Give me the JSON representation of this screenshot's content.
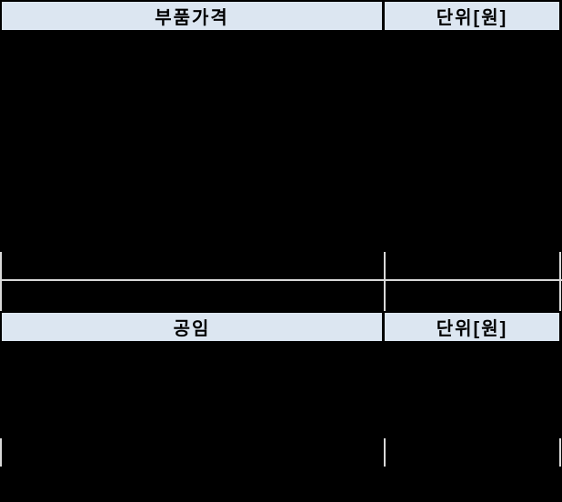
{
  "colors": {
    "background": "#000000",
    "header_bg": "#dce6f1",
    "header_text": "#000000",
    "border": "#000000",
    "gridline": "#d9d9d9"
  },
  "parts_section": {
    "title": "부품가격",
    "unit_label": "단위[원]"
  },
  "labor_section": {
    "title": "공임",
    "unit_label": "단위[원]"
  }
}
